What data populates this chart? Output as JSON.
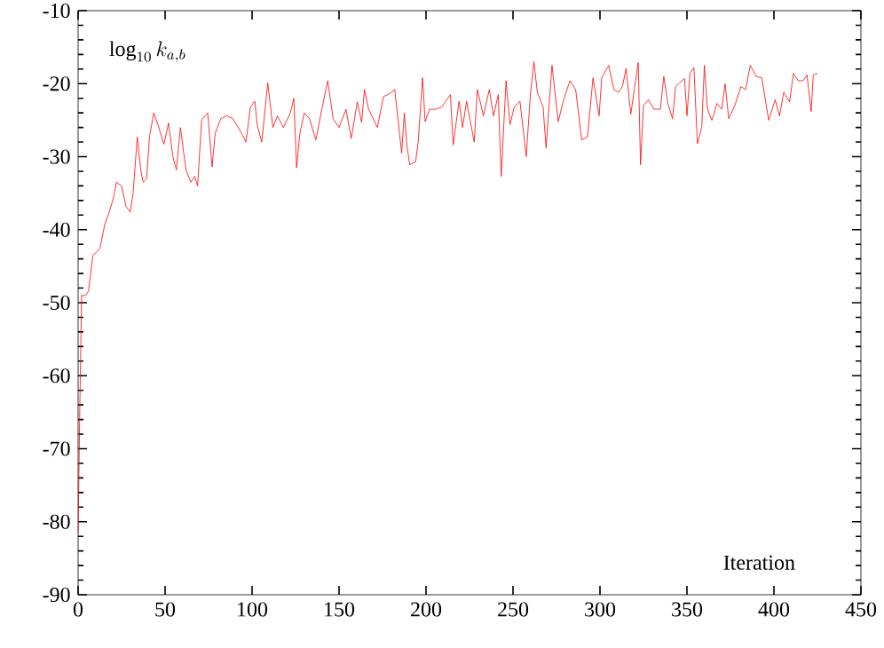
{
  "chart_data": {
    "type": "line",
    "xlabel": "Iteration",
    "ylabel": "\\log_{10} k_{a,b}",
    "color": "#ff0000",
    "marker": "none",
    "line_style": "solid",
    "grid": false,
    "xlim": [
      0,
      450
    ],
    "ylim": [
      -90,
      -10
    ],
    "xticks": [
      0,
      50,
      100,
      150,
      200,
      250,
      300,
      350,
      400,
      450
    ],
    "yticks": [
      -90,
      -80,
      -70,
      -60,
      -50,
      -40,
      -30,
      -20,
      -10
    ],
    "x": [
      0,
      1,
      2,
      4.4,
      6,
      8.5,
      11,
      12.6,
      15.3,
      18,
      20.4,
      22,
      25,
      27.5,
      30,
      31.6,
      34,
      36,
      37.4,
      39.4,
      41,
      43.5,
      46,
      49.3,
      52,
      54.5,
      56.5,
      58.8,
      62,
      64.8,
      67,
      68.7,
      71,
      74.5,
      77,
      78.8,
      82,
      85.5,
      89,
      94,
      96.5,
      99,
      101.6,
      103,
      105.6,
      109,
      112,
      114.6,
      118,
      122,
      124,
      125.6,
      127.5,
      130,
      133,
      136.7,
      140,
      143.5,
      146.6,
      150,
      154,
      157,
      160.5,
      163,
      164.6,
      167,
      172,
      175.5,
      178.7,
      182,
      186,
      187.5,
      189,
      190.6,
      194,
      195.5,
      198,
      199.5,
      202,
      205.6,
      209,
      214,
      215.6,
      219,
      221,
      223.3,
      227.7,
      229.5,
      233,
      236.4,
      238.8,
      241.5,
      243.2,
      246,
      248.3,
      250.7,
      254,
      257.6,
      260,
      262,
      264,
      267.3,
      269,
      272.4,
      276,
      279,
      282.7,
      286,
      289.5,
      292.8,
      296,
      299.5,
      301,
      305,
      308,
      310.6,
      312.9,
      315,
      317.7,
      320,
      322,
      323.3,
      325,
      327.9,
      331,
      334.7,
      336.7,
      339,
      341.7,
      343.5,
      346,
      348.6,
      350,
      351.7,
      354,
      356,
      358.5,
      360,
      361.8,
      364.3,
      367.3,
      370,
      371.9,
      374,
      377.5,
      381,
      383.7,
      386.4,
      389.8,
      393,
      395.6,
      397,
      400.7,
      403.2,
      405.6,
      409,
      411.2,
      414,
      416.7,
      419,
      421.4,
      422.6,
      425
    ],
    "values": [
      -81.5,
      -64,
      -49,
      -49,
      -48.4,
      -43.5,
      -43,
      -42.5,
      -39.3,
      -37.5,
      -35.6,
      -33.5,
      -34,
      -36.8,
      -37.6,
      -35,
      -27.3,
      -31.8,
      -33.5,
      -33,
      -27.3,
      -24,
      -25.7,
      -28.3,
      -25.4,
      -30,
      -31.8,
      -26,
      -31.8,
      -33.5,
      -32.7,
      -34,
      -25,
      -24,
      -31.4,
      -26.8,
      -24.8,
      -24.4,
      -24.8,
      -26.8,
      -28,
      -23.2,
      -22.4,
      -25.7,
      -28,
      -19.9,
      -26,
      -24.4,
      -26,
      -24,
      -22,
      -31.5,
      -26.8,
      -24,
      -24.8,
      -27.7,
      -23.6,
      -19.6,
      -24.8,
      -26,
      -23.5,
      -27.5,
      -22.5,
      -25.3,
      -20.8,
      -23.5,
      -26,
      -21.8,
      -21.4,
      -20.8,
      -29.5,
      -24,
      -28.4,
      -31.1,
      -30.7,
      -28,
      -19.2,
      -25.2,
      -23.5,
      -23.5,
      -23.2,
      -21.5,
      -28.4,
      -22.4,
      -26,
      -22.4,
      -28,
      -20.8,
      -24.4,
      -20.8,
      -24.4,
      -21.5,
      -32.7,
      -19.6,
      -25.6,
      -23.2,
      -22.4,
      -30,
      -21.5,
      -17,
      -21.2,
      -23.2,
      -28.8,
      -17.5,
      -25.2,
      -22.3,
      -19.6,
      -20.8,
      -27.7,
      -27.3,
      -19.2,
      -24.4,
      -19.2,
      -17.5,
      -20.8,
      -21.2,
      -20.4,
      -17.9,
      -24.2,
      -20.4,
      -17.1,
      -31.1,
      -23,
      -22.2,
      -23.5,
      -23.5,
      -19,
      -22.7,
      -24.8,
      -20.4,
      -19.8,
      -19.3,
      -24.4,
      -18.6,
      -17.8,
      -28.2,
      -26,
      -17.5,
      -23.5,
      -25,
      -22.7,
      -23.5,
      -20,
      -24.8,
      -23,
      -20.4,
      -20.8,
      -17.5,
      -19,
      -19.2,
      -23,
      -25,
      -22.2,
      -24.4,
      -21.2,
      -22.5,
      -18.6,
      -19.6,
      -19.6,
      -18.8,
      -23.8,
      -18.8,
      -18.6
    ]
  }
}
